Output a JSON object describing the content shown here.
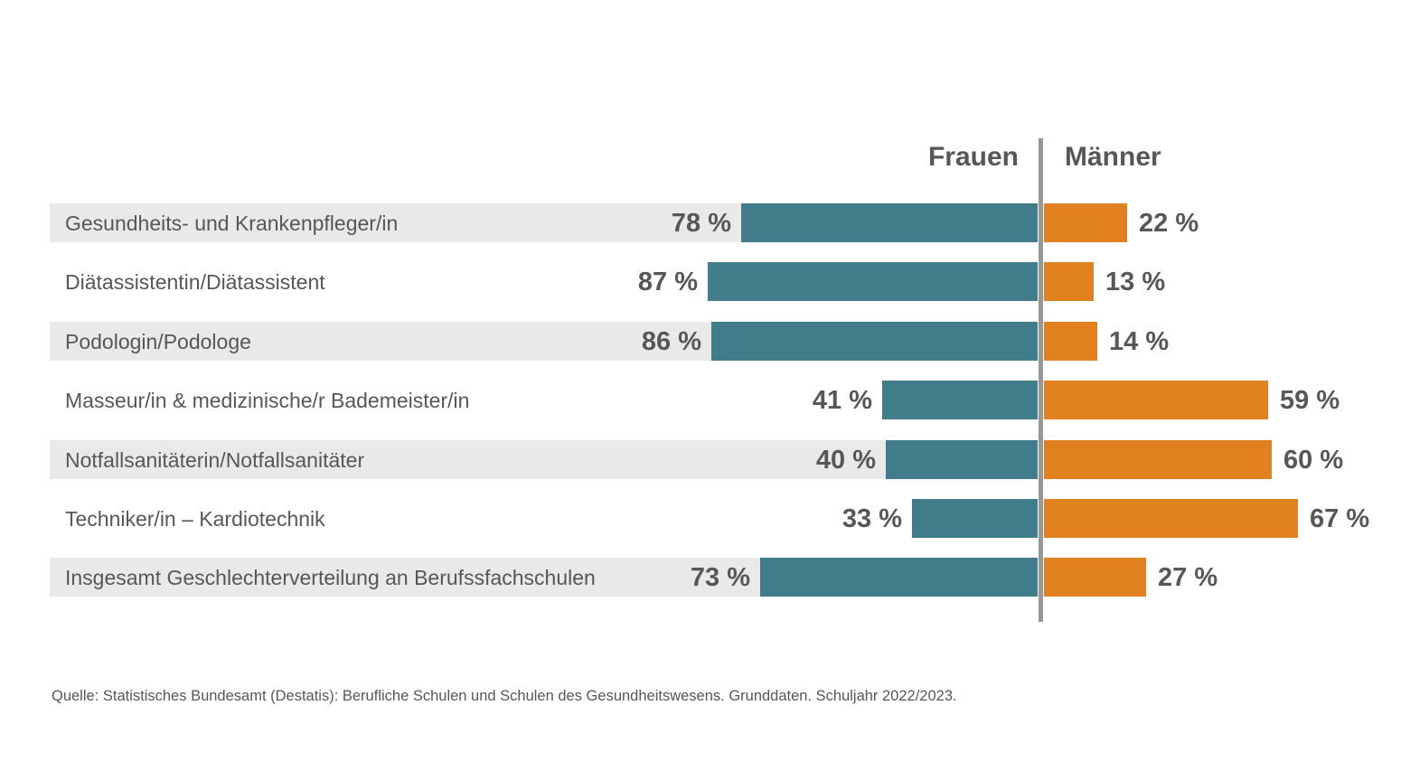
{
  "chart_data": {
    "type": "bar",
    "orientation": "horizontal-diverging",
    "title": "",
    "column_headers": {
      "left": "Frauen",
      "right": "Männer"
    },
    "categories": [
      "Gesundheits- und Krankenpfleger/in",
      "Diätassistentin/Diätassistent",
      "Podologin/Podologe",
      "Masseur/in & medizinische/r Bademeister/in",
      "Notfallsanitäterin/Notfallsanitäter",
      "Techniker/in – Kardiotechnik",
      "Insgesamt Geschlechterverteilung an Berufssfachschulen"
    ],
    "series": [
      {
        "name": "Frauen",
        "color": "#417C8B",
        "values": [
          78,
          87,
          86,
          41,
          40,
          33,
          73
        ]
      },
      {
        "name": "Männer",
        "color": "#E0801E",
        "values": [
          22,
          13,
          14,
          59,
          60,
          67,
          27
        ]
      }
    ],
    "unit": "%",
    "xlim": [
      0,
      100
    ],
    "grid": false,
    "legend_position": "top-center",
    "banded_rows": [
      0,
      2,
      4,
      6
    ],
    "band_color": "#E9E9E8",
    "divider_color": "#979797",
    "text_color": "#575756"
  },
  "source": {
    "text": "Quelle: Statistisches Bundesamt (Destatis): Berufliche Schulen und Schulen des Gesundheitswesens. Grunddaten. Schuljahr 2022/2023."
  }
}
